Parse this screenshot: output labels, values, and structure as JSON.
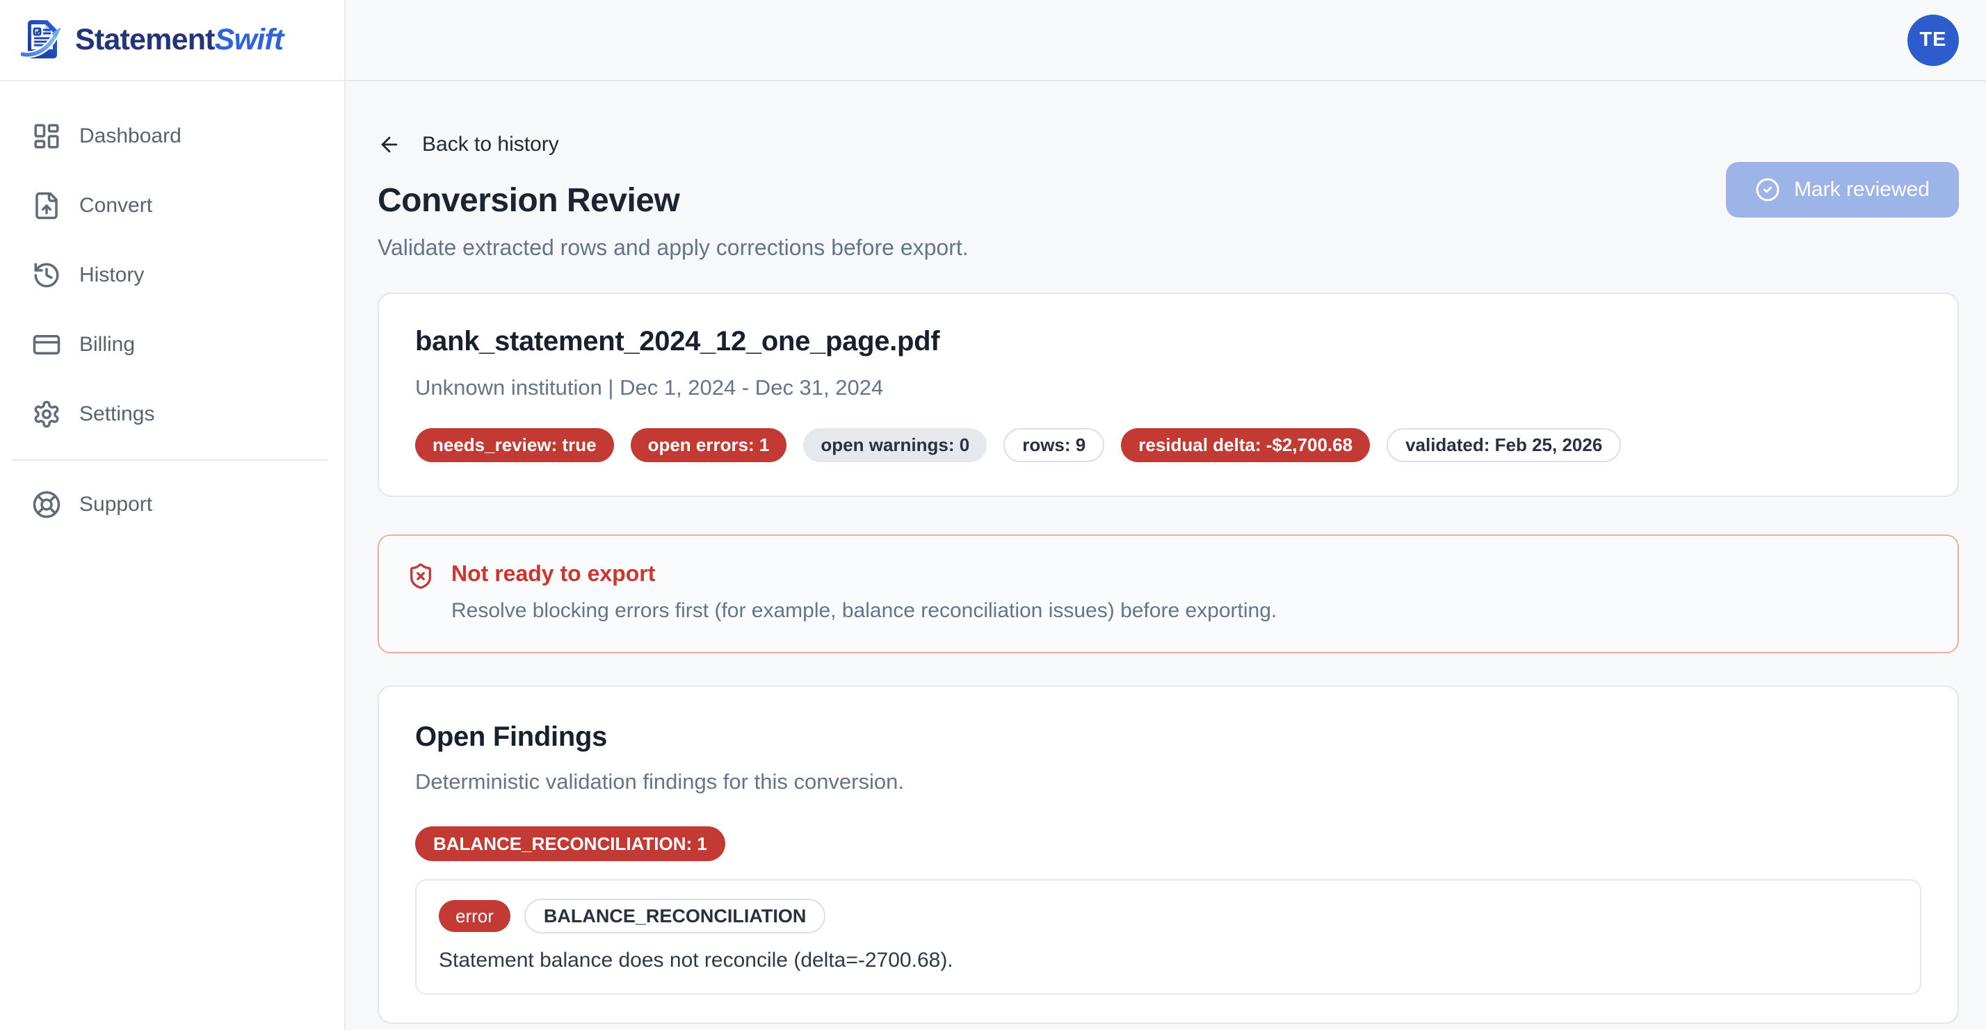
{
  "brand": {
    "name_primary": "Statement",
    "name_secondary": "Swift",
    "logo_icon": "document-arrow-logo-icon"
  },
  "topbar": {
    "avatar_initials": "TE"
  },
  "sidebar": {
    "items": [
      {
        "id": "dashboard",
        "label": "Dashboard",
        "icon": "layout-dashboard-icon"
      },
      {
        "id": "convert",
        "label": "Convert",
        "icon": "file-upload-icon"
      },
      {
        "id": "history",
        "label": "History",
        "icon": "history-clock-icon"
      },
      {
        "id": "billing",
        "label": "Billing",
        "icon": "credit-card-icon"
      },
      {
        "id": "settings",
        "label": "Settings",
        "icon": "gear-icon"
      }
    ],
    "footer_items": [
      {
        "id": "support",
        "label": "Support",
        "icon": "life-buoy-icon"
      }
    ]
  },
  "header": {
    "back_label": "Back to history",
    "back_icon": "arrow-left-icon",
    "title": "Conversion Review",
    "subtitle": "Validate extracted rows and apply corrections before export.",
    "mark_reviewed_label": "Mark reviewed",
    "mark_reviewed_icon": "circle-check-icon"
  },
  "file_card": {
    "filename": "bank_statement_2024_12_one_page.pdf",
    "meta": "Unknown institution | Dec 1, 2024 - Dec 31, 2024",
    "badges": [
      {
        "label": "needs_review: true",
        "variant": "danger"
      },
      {
        "label": "open errors: 1",
        "variant": "danger"
      },
      {
        "label": "open warnings: 0",
        "variant": "neutral"
      },
      {
        "label": "rows: 9",
        "variant": "outline"
      },
      {
        "label": "residual delta: -$2,700.68",
        "variant": "danger"
      },
      {
        "label": "validated: Feb 25, 2026",
        "variant": "outline"
      }
    ]
  },
  "alert": {
    "icon": "shield-x-icon",
    "title": "Not ready to export",
    "message": "Resolve blocking errors first (for example, balance reconciliation issues) before exporting."
  },
  "findings": {
    "title": "Open Findings",
    "subtitle": "Deterministic validation findings for this conversion.",
    "summary_badge": "BALANCE_RECONCILIATION: 1",
    "items": [
      {
        "severity": "error",
        "code": "BALANCE_RECONCILIATION",
        "message": "Statement balance does not reconcile (delta=-2700.68)."
      }
    ]
  },
  "colors": {
    "danger": "#c23a33",
    "danger_border": "#efaca4",
    "avatar_blue": "#2e5ccc",
    "button_blue_disabled": "#9db4e9",
    "brand_navy": "#21357b",
    "brand_blue": "#2f63da",
    "page_background": "#f7f8fa"
  }
}
